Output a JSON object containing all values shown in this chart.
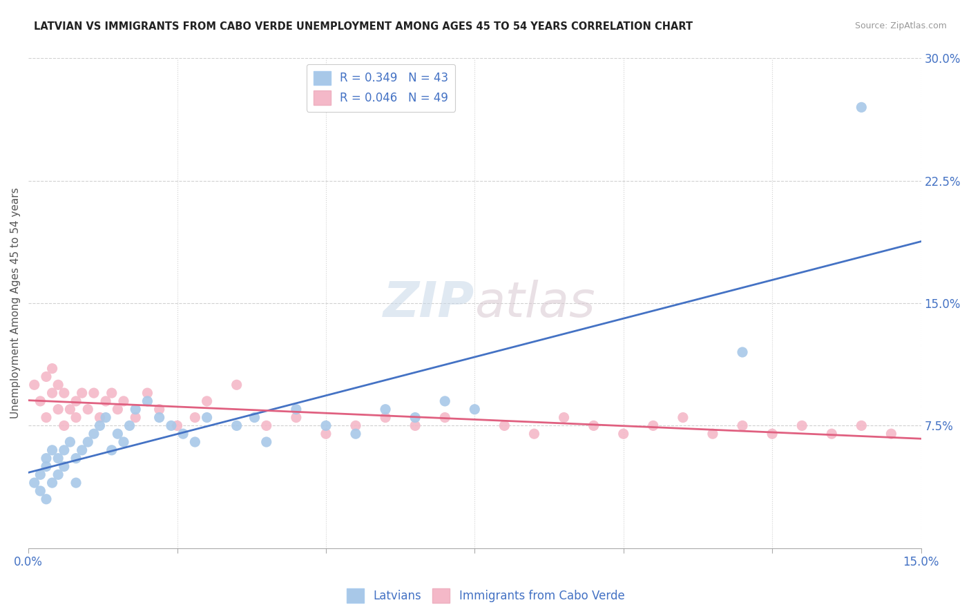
{
  "title": "LATVIAN VS IMMIGRANTS FROM CABO VERDE UNEMPLOYMENT AMONG AGES 45 TO 54 YEARS CORRELATION CHART",
  "source": "Source: ZipAtlas.com",
  "ylabel": "Unemployment Among Ages 45 to 54 years",
  "xlim": [
    0,
    0.15
  ],
  "ylim": [
    0,
    0.3
  ],
  "ytick_vals": [
    0.075,
    0.15,
    0.225,
    0.3
  ],
  "ytick_labels": [
    "7.5%",
    "15.0%",
    "22.5%",
    "30.0%"
  ],
  "legend_latvians": "Latvians",
  "legend_cabo": "Immigrants from Cabo Verde",
  "R_latvians": 0.349,
  "N_latvians": 43,
  "R_cabo": 0.046,
  "N_cabo": 49,
  "color_latvians": "#a8c8e8",
  "color_cabo": "#f4b8c8",
  "line_color_latvians": "#4472c4",
  "line_color_cabo": "#e06080",
  "background_color": "#ffffff",
  "grid_color": "#d0d0d0",
  "watermark_zip": "ZIP",
  "watermark_atlas": "atlas",
  "latvians_x": [
    0.001,
    0.002,
    0.002,
    0.003,
    0.003,
    0.003,
    0.004,
    0.004,
    0.005,
    0.005,
    0.006,
    0.006,
    0.007,
    0.008,
    0.008,
    0.009,
    0.01,
    0.011,
    0.012,
    0.013,
    0.014,
    0.015,
    0.016,
    0.017,
    0.018,
    0.02,
    0.022,
    0.024,
    0.026,
    0.028,
    0.03,
    0.035,
    0.038,
    0.04,
    0.045,
    0.05,
    0.055,
    0.06,
    0.065,
    0.07,
    0.075,
    0.12,
    0.14
  ],
  "latvians_y": [
    0.04,
    0.045,
    0.035,
    0.055,
    0.05,
    0.03,
    0.06,
    0.04,
    0.055,
    0.045,
    0.06,
    0.05,
    0.065,
    0.055,
    0.04,
    0.06,
    0.065,
    0.07,
    0.075,
    0.08,
    0.06,
    0.07,
    0.065,
    0.075,
    0.085,
    0.09,
    0.08,
    0.075,
    0.07,
    0.065,
    0.08,
    0.075,
    0.08,
    0.065,
    0.085,
    0.075,
    0.07,
    0.085,
    0.08,
    0.09,
    0.085,
    0.12,
    0.27
  ],
  "cabo_x": [
    0.001,
    0.002,
    0.003,
    0.003,
    0.004,
    0.004,
    0.005,
    0.005,
    0.006,
    0.006,
    0.007,
    0.008,
    0.008,
    0.009,
    0.01,
    0.011,
    0.012,
    0.013,
    0.014,
    0.015,
    0.016,
    0.018,
    0.02,
    0.022,
    0.025,
    0.028,
    0.03,
    0.035,
    0.04,
    0.045,
    0.05,
    0.055,
    0.06,
    0.065,
    0.07,
    0.08,
    0.085,
    0.09,
    0.095,
    0.1,
    0.105,
    0.11,
    0.115,
    0.12,
    0.125,
    0.13,
    0.135,
    0.14,
    0.145
  ],
  "cabo_y": [
    0.1,
    0.09,
    0.105,
    0.08,
    0.095,
    0.11,
    0.085,
    0.1,
    0.095,
    0.075,
    0.085,
    0.09,
    0.08,
    0.095,
    0.085,
    0.095,
    0.08,
    0.09,
    0.095,
    0.085,
    0.09,
    0.08,
    0.095,
    0.085,
    0.075,
    0.08,
    0.09,
    0.1,
    0.075,
    0.08,
    0.07,
    0.075,
    0.08,
    0.075,
    0.08,
    0.075,
    0.07,
    0.08,
    0.075,
    0.07,
    0.075,
    0.08,
    0.07,
    0.075,
    0.07,
    0.075,
    0.07,
    0.075,
    0.07
  ]
}
